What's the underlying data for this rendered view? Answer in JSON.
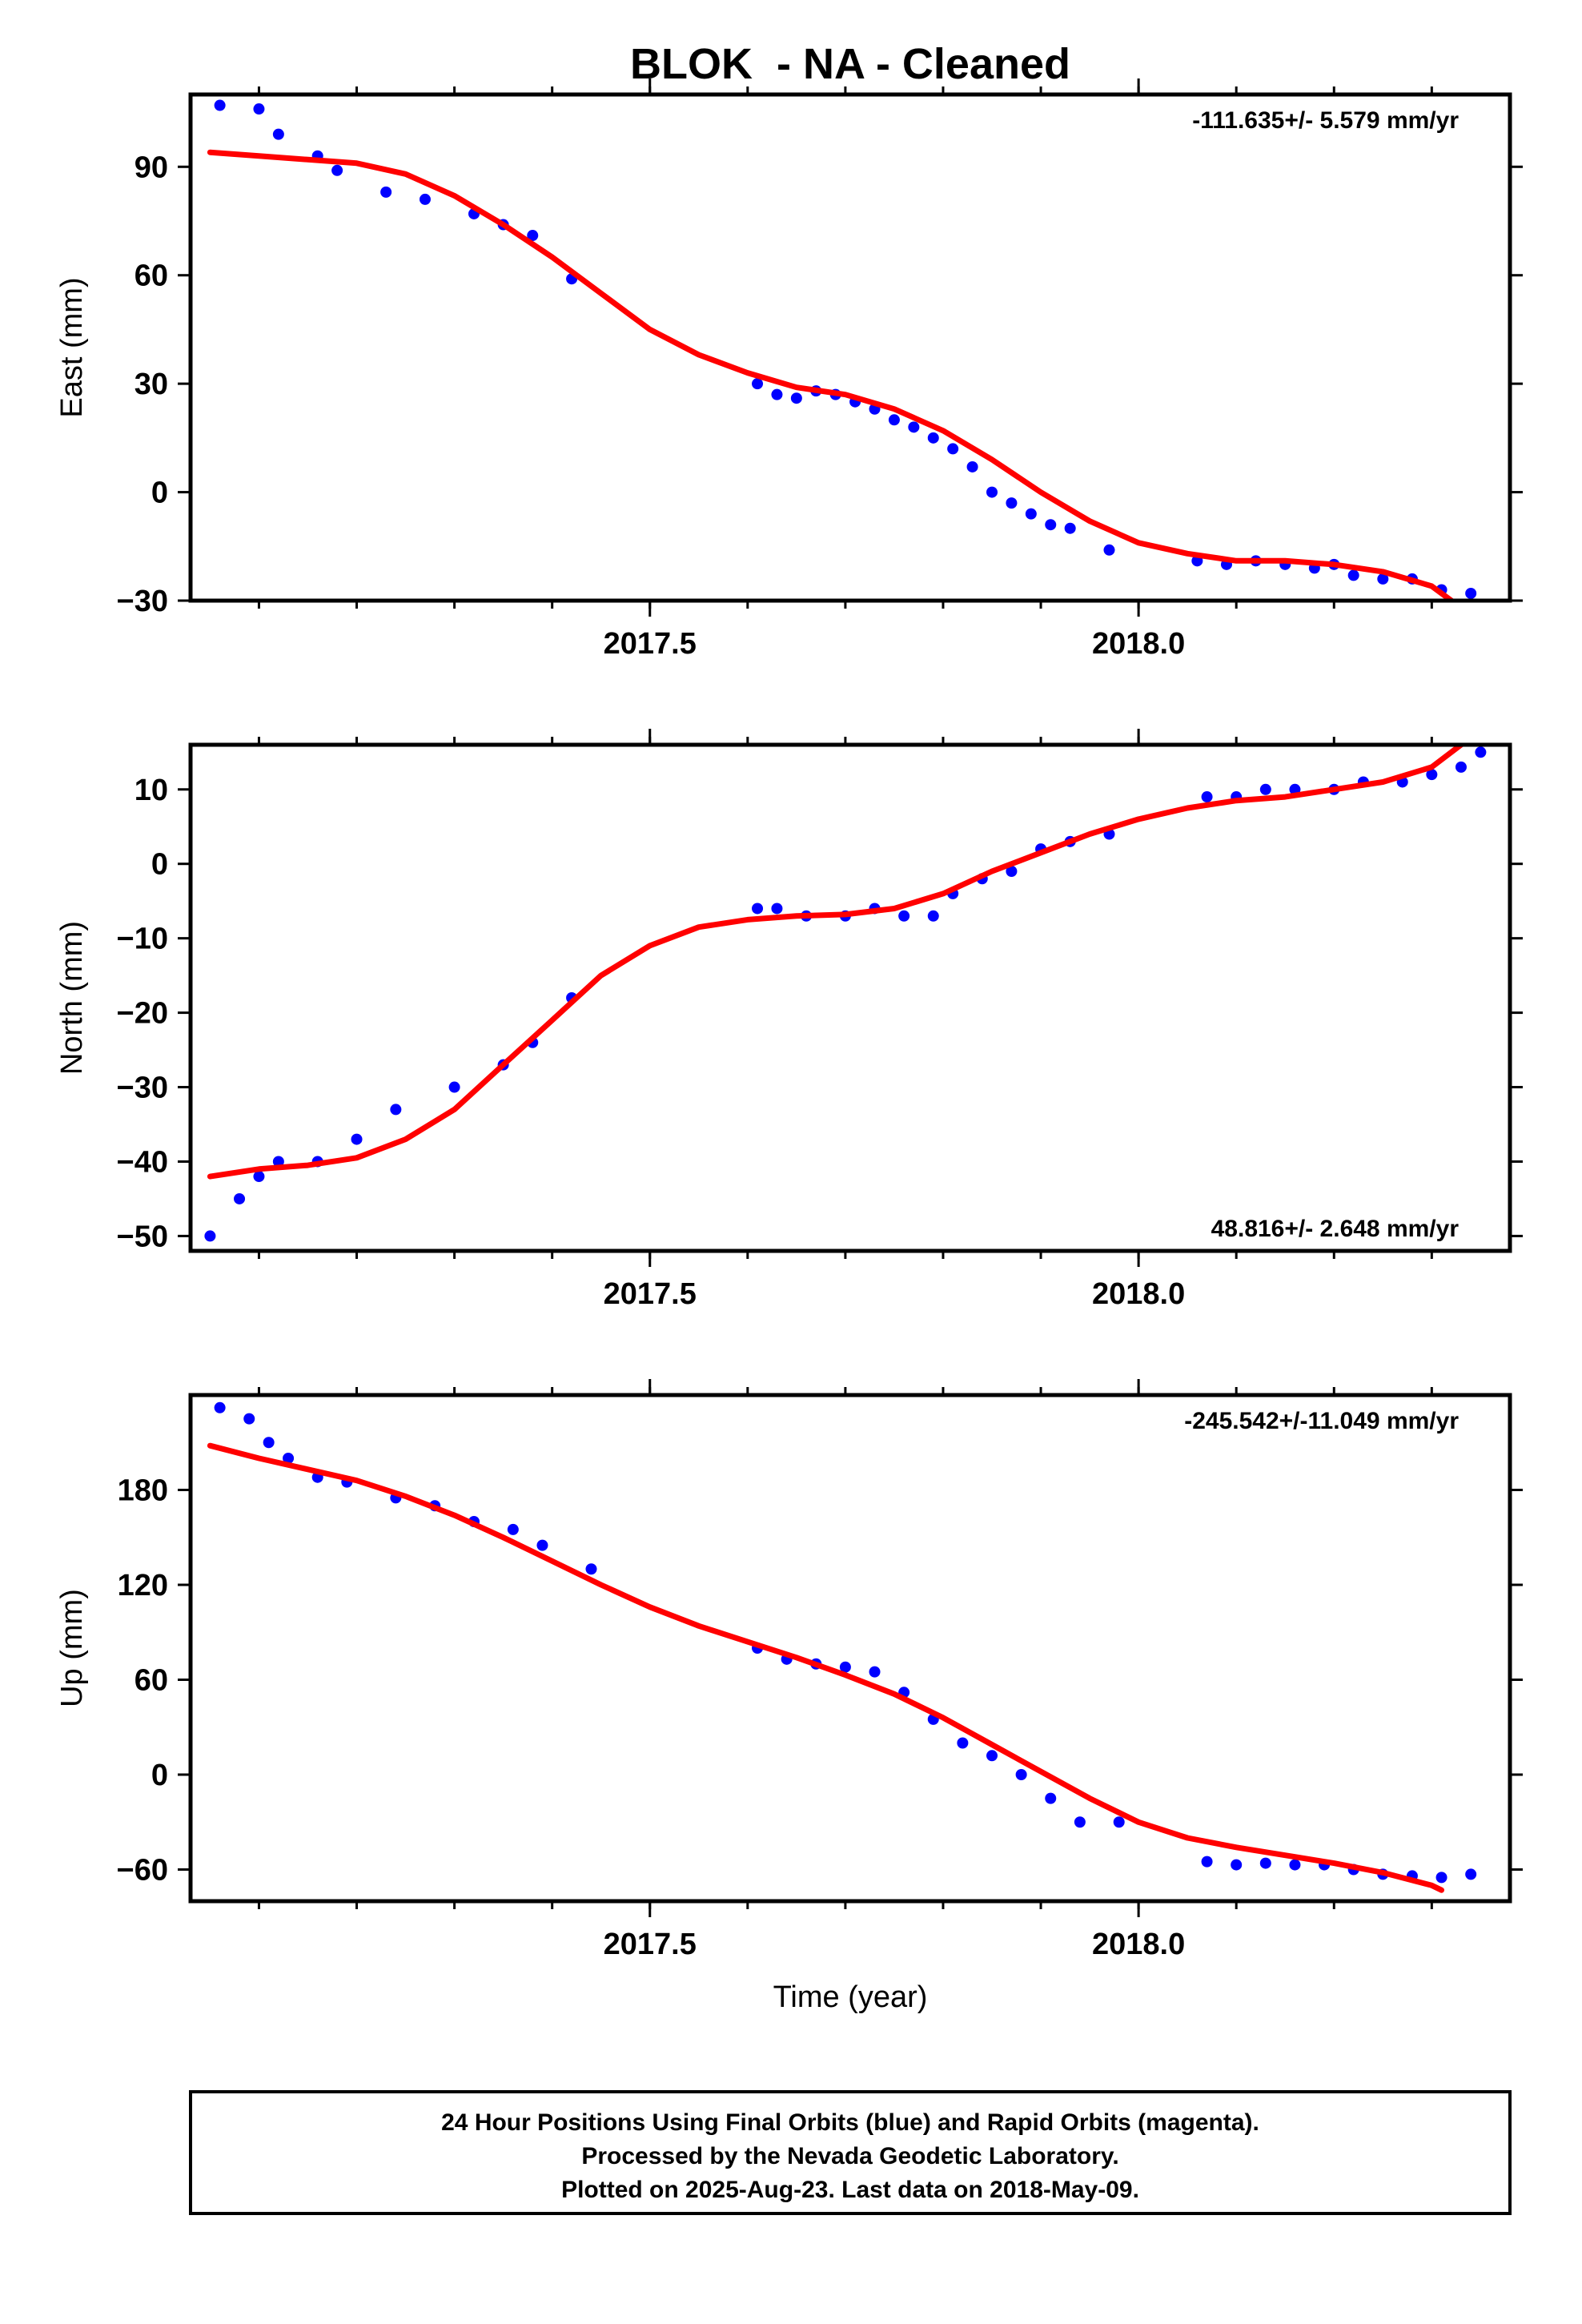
{
  "title": "BLOK  - NA - Cleaned",
  "xlabel": "Time (year)",
  "footer": {
    "line1": "24 Hour Positions Using Final Orbits (blue) and Rapid Orbits (magenta).",
    "line2": "Processed by the Nevada Geodetic Laboratory.",
    "line3": "Plotted on 2025-Aug-23. Last data on 2018-May-09."
  },
  "colors": {
    "data_points": "#0000ff",
    "model_fit": "#ff0000",
    "frame": "#000000"
  },
  "chart_data": [
    {
      "type": "scatter",
      "component": "east",
      "ylabel": "East (mm)",
      "rate_text": "-111.635+/- 5.579 mm/yr",
      "rate_position": "top-right",
      "xlim": [
        2017.03,
        2018.38
      ],
      "ylim": [
        -30,
        110
      ],
      "xticks": [
        2017.5,
        2018.0
      ],
      "xtick_labels": [
        "2017.5",
        "2018.0"
      ],
      "xminor_step": 0.1,
      "yticks": [
        90,
        60,
        30,
        0,
        -30
      ],
      "ytick_labels": [
        "90",
        "60",
        "30",
        "0",
        "−30"
      ],
      "grid": false,
      "series": [
        {
          "kind": "points",
          "x": [
            2017.06,
            2017.1,
            2017.12,
            2017.16,
            2017.18,
            2017.23,
            2017.27,
            2017.32,
            2017.35,
            2017.38,
            2017.42,
            2017.61,
            2017.63,
            2017.65,
            2017.67,
            2017.69,
            2017.71,
            2017.73,
            2017.75,
            2017.77,
            2017.79,
            2017.81,
            2017.83,
            2017.85,
            2017.87,
            2017.89,
            2017.91,
            2017.93,
            2017.97,
            2018.06,
            2018.09,
            2018.12,
            2018.15,
            2018.18,
            2018.2,
            2018.22,
            2018.25,
            2018.28,
            2018.31,
            2018.34
          ],
          "y": [
            107,
            106,
            99,
            93,
            89,
            83,
            81,
            77,
            74,
            71,
            59,
            30,
            27,
            26,
            28,
            27,
            25,
            23,
            20,
            18,
            15,
            12,
            7,
            0,
            -3,
            -6,
            -9,
            -10,
            -16,
            -19,
            -20,
            -19,
            -20,
            -21,
            -20,
            -23,
            -24,
            -24,
            -27,
            -28
          ]
        },
        {
          "kind": "fit",
          "x": [
            2017.05,
            2017.1,
            2017.15,
            2017.2,
            2017.25,
            2017.3,
            2017.35,
            2017.4,
            2017.45,
            2017.5,
            2017.55,
            2017.6,
            2017.65,
            2017.7,
            2017.75,
            2017.8,
            2017.85,
            2017.9,
            2017.95,
            2018.0,
            2018.05,
            2018.1,
            2018.15,
            2018.2,
            2018.25,
            2018.3,
            2018.32
          ],
          "y": [
            94,
            93,
            92,
            91,
            88,
            82,
            74,
            65,
            55,
            45,
            38,
            33,
            29,
            27,
            23,
            17,
            9,
            0,
            -8,
            -14,
            -17,
            -19,
            -19,
            -20,
            -22,
            -26,
            -30
          ]
        }
      ]
    },
    {
      "type": "scatter",
      "component": "north",
      "ylabel": "North (mm)",
      "rate_text": "48.816+/- 2.648 mm/yr",
      "rate_position": "bottom-right",
      "xlim": [
        2017.03,
        2018.38
      ],
      "ylim": [
        -52,
        16
      ],
      "xticks": [
        2017.5,
        2018.0
      ],
      "xtick_labels": [
        "2017.5",
        "2018.0"
      ],
      "xminor_step": 0.1,
      "yticks": [
        10,
        0,
        -10,
        -20,
        -30,
        -40,
        -50
      ],
      "ytick_labels": [
        "10",
        "0",
        "−10",
        "−20",
        "−30",
        "−40",
        "−50"
      ],
      "grid": false,
      "series": [
        {
          "kind": "points",
          "x": [
            2017.05,
            2017.08,
            2017.1,
            2017.12,
            2017.16,
            2017.2,
            2017.24,
            2017.3,
            2017.35,
            2017.38,
            2017.42,
            2017.61,
            2017.63,
            2017.66,
            2017.7,
            2017.73,
            2017.76,
            2017.79,
            2017.81,
            2017.84,
            2017.87,
            2017.9,
            2017.93,
            2017.97,
            2018.07,
            2018.1,
            2018.13,
            2018.16,
            2018.2,
            2018.23,
            2018.27,
            2018.3,
            2018.33,
            2018.35
          ],
          "y": [
            -50,
            -45,
            -42,
            -40,
            -40,
            -37,
            -33,
            -30,
            -27,
            -24,
            -18,
            -6,
            -6,
            -7,
            -7,
            -6,
            -7,
            -7,
            -4,
            -2,
            -1,
            2,
            3,
            4,
            9,
            9,
            10,
            10,
            10,
            11,
            11,
            12,
            13,
            15
          ]
        },
        {
          "kind": "fit",
          "x": [
            2017.05,
            2017.1,
            2017.15,
            2017.2,
            2017.25,
            2017.3,
            2017.35,
            2017.4,
            2017.45,
            2017.5,
            2017.55,
            2017.6,
            2017.65,
            2017.7,
            2017.75,
            2017.8,
            2017.85,
            2017.9,
            2017.95,
            2018.0,
            2018.05,
            2018.1,
            2018.15,
            2018.2,
            2018.25,
            2018.3,
            2018.33
          ],
          "y": [
            -42,
            -41,
            -40.5,
            -39.5,
            -37,
            -33,
            -27,
            -21,
            -15,
            -11,
            -8.5,
            -7.5,
            -7,
            -6.8,
            -6,
            -4,
            -1,
            1.5,
            4,
            6,
            7.5,
            8.5,
            9,
            10,
            11,
            13,
            16
          ]
        }
      ]
    },
    {
      "type": "scatter",
      "component": "up",
      "ylabel": "Up (mm)",
      "rate_text": "-245.542+/-11.049 mm/yr",
      "rate_position": "top-right",
      "xlim": [
        2017.03,
        2018.38
      ],
      "ylim": [
        -80,
        240
      ],
      "xticks": [
        2017.5,
        2018.0
      ],
      "xtick_labels": [
        "2017.5",
        "2018.0"
      ],
      "xminor_step": 0.1,
      "yticks": [
        180,
        120,
        60,
        0,
        -60
      ],
      "ytick_labels": [
        "180",
        "120",
        "60",
        "0",
        "−60"
      ],
      "grid": false,
      "series": [
        {
          "kind": "points",
          "x": [
            2017.06,
            2017.09,
            2017.11,
            2017.13,
            2017.16,
            2017.19,
            2017.24,
            2017.28,
            2017.32,
            2017.36,
            2017.39,
            2017.44,
            2017.61,
            2017.64,
            2017.67,
            2017.7,
            2017.73,
            2017.76,
            2017.79,
            2017.82,
            2017.85,
            2017.88,
            2017.91,
            2017.94,
            2017.98,
            2018.07,
            2018.1,
            2018.13,
            2018.16,
            2018.19,
            2018.22,
            2018.25,
            2018.28,
            2018.31,
            2018.34
          ],
          "y": [
            232,
            225,
            210,
            200,
            188,
            185,
            175,
            170,
            160,
            155,
            145,
            130,
            80,
            73,
            70,
            68,
            65,
            52,
            35,
            20,
            12,
            0,
            -15,
            -30,
            -30,
            -55,
            -57,
            -56,
            -57,
            -57,
            -60,
            -63,
            -64,
            -65,
            -63
          ]
        },
        {
          "kind": "fit",
          "x": [
            2017.05,
            2017.1,
            2017.15,
            2017.2,
            2017.25,
            2017.3,
            2017.35,
            2017.4,
            2017.45,
            2017.5,
            2017.55,
            2017.6,
            2017.65,
            2017.7,
            2017.75,
            2017.8,
            2017.85,
            2017.9,
            2017.95,
            2018.0,
            2018.05,
            2018.1,
            2018.15,
            2018.2,
            2018.25,
            2018.3,
            2018.31
          ],
          "y": [
            208,
            200,
            193,
            186,
            176,
            164,
            150,
            135,
            120,
            106,
            94,
            84,
            74,
            63,
            51,
            36,
            19,
            2,
            -15,
            -30,
            -40,
            -46,
            -51,
            -56,
            -62,
            -70,
            -73
          ]
        }
      ]
    }
  ]
}
